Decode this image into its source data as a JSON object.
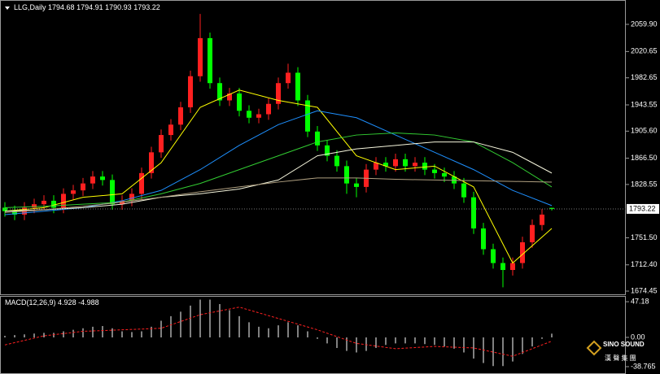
{
  "chart_data": {
    "type": "candlestick",
    "title": "LLG,Daily",
    "up_color": "#ff2020",
    "down_color": "#00ff00",
    "open": [
      1795,
      1790,
      1785,
      1795,
      1800,
      1805,
      1795,
      1815,
      1820,
      1830,
      1840,
      1835,
      1800,
      1805,
      1815,
      1845,
      1875,
      1900,
      1915,
      1940,
      1985,
      2040,
      1975,
      1950,
      1960,
      1935,
      1925,
      1930,
      1945,
      1975,
      1990,
      1950,
      1905,
      1885,
      1870,
      1855,
      1830,
      1825,
      1850,
      1860,
      1855,
      1865,
      1855,
      1860,
      1850,
      1845,
      1840,
      1830,
      1810,
      1765,
      1735,
      1715,
      1705,
      1715,
      1745,
      1770,
      1794.68
    ],
    "high": [
      1803,
      1798,
      1803,
      1808,
      1813,
      1813,
      1823,
      1828,
      1838,
      1848,
      1848,
      1843,
      1813,
      1823,
      1853,
      1883,
      1908,
      1923,
      1948,
      1993,
      2075,
      2048,
      1983,
      1968,
      1968,
      1943,
      1938,
      1953,
      1983,
      2003,
      1998,
      1958,
      1913,
      1893,
      1878,
      1863,
      1838,
      1858,
      1868,
      1868,
      1873,
      1873,
      1868,
      1868,
      1858,
      1853,
      1848,
      1838,
      1818,
      1773,
      1743,
      1723,
      1723,
      1753,
      1778,
      1793,
      1794.91
    ],
    "low": [
      1782,
      1777,
      1777,
      1787,
      1792,
      1787,
      1787,
      1807,
      1812,
      1822,
      1827,
      1792,
      1792,
      1797,
      1807,
      1837,
      1867,
      1892,
      1907,
      1932,
      1977,
      1967,
      1942,
      1942,
      1927,
      1917,
      1917,
      1922,
      1937,
      1967,
      1942,
      1897,
      1877,
      1862,
      1847,
      1815,
      1810,
      1817,
      1842,
      1847,
      1847,
      1847,
      1847,
      1842,
      1837,
      1832,
      1822,
      1802,
      1757,
      1727,
      1707,
      1680,
      1697,
      1707,
      1737,
      1762,
      1790.93
    ],
    "close": [
      1790,
      1785,
      1795,
      1800,
      1805,
      1795,
      1815,
      1820,
      1830,
      1840,
      1835,
      1800,
      1805,
      1815,
      1845,
      1875,
      1900,
      1915,
      1940,
      1985,
      2040,
      1975,
      1950,
      1960,
      1935,
      1925,
      1930,
      1945,
      1975,
      1990,
      1950,
      1905,
      1885,
      1870,
      1855,
      1830,
      1825,
      1850,
      1860,
      1855,
      1865,
      1855,
      1860,
      1850,
      1845,
      1840,
      1830,
      1810,
      1765,
      1735,
      1715,
      1705,
      1715,
      1745,
      1770,
      1785,
      1793.22
    ],
    "current_price": 1793.22,
    "ylim": [
      1669.8,
      2095.1
    ],
    "yticks": [
      {
        "value": 2059.9,
        "label": "2059.90"
      },
      2020.65,
      1982.65,
      1943.55,
      {
        "value": 1905.6,
        "label": "1905.60"
      },
      {
        "value": 1866.5,
        "label": "1866.50"
      },
      1828.55,
      {
        "value": 1751.5,
        "label": "1751.50"
      },
      {
        "value": 1712.4,
        "label": "1712.40"
      },
      1674.45
    ],
    "ma_x": [
      0,
      4,
      8,
      12,
      16,
      20,
      24,
      28,
      32,
      36,
      40,
      44,
      48,
      52,
      56
    ],
    "moving_averages": [
      {
        "color": "#ffff00",
        "values": [
          1790,
          1795,
          1810,
          1815,
          1860,
          1940,
          1965,
          1950,
          1940,
          1870,
          1850,
          1855,
          1825,
          1715,
          1765
        ]
      },
      {
        "color": "#1e90ff",
        "values": [
          1785,
          1790,
          1795,
          1805,
          1820,
          1850,
          1885,
          1915,
          1935,
          1925,
          1900,
          1875,
          1850,
          1820,
          1798
        ]
      },
      {
        "color": "#32cd32",
        "values": [
          1795,
          1797,
          1800,
          1803,
          1815,
          1830,
          1850,
          1870,
          1890,
          1900,
          1903,
          1900,
          1890,
          1860,
          1825
        ]
      },
      {
        "color": "#f5f5dc",
        "values": [
          1790,
          1792,
          1795,
          1800,
          1810,
          1815,
          1822,
          1835,
          1870,
          1880,
          1885,
          1890,
          1890,
          1875,
          1845
        ]
      },
      {
        "color": "#b0a080",
        "values": [
          1788,
          1792,
          1797,
          1803,
          1810,
          1818,
          1825,
          1832,
          1838,
          1838,
          1836,
          1835,
          1834,
          1833,
          1832
        ]
      }
    ],
    "macd": {
      "label": "MACD(12,26,9)",
      "hist_color": "#ffffff",
      "signal_color": "#ff2020",
      "values": [
        2,
        3,
        4,
        5,
        6,
        6,
        8,
        10,
        12,
        14,
        15,
        12,
        8,
        7,
        8,
        14,
        22,
        28,
        34,
        42,
        50,
        50,
        44,
        36,
        28,
        20,
        14,
        12,
        16,
        20,
        16,
        8,
        -2,
        -8,
        -14,
        -18,
        -20,
        -18,
        -14,
        -10,
        -8,
        -8,
        -8,
        -9,
        -10,
        -12,
        -15,
        -20,
        -28,
        -34,
        -38,
        -38,
        -32,
        -22,
        -12,
        -2,
        4.928
      ],
      "signal": [
        -10,
        2,
        8,
        10,
        12,
        30,
        40,
        25,
        10,
        -8,
        -15,
        -12,
        -14,
        -25,
        -4.988
      ],
      "ylim": [
        -47.4,
        54.8
      ],
      "yticks": [
        47.18,
        {
          "value": 0,
          "label": "0.00"
        },
        -38.765
      ]
    },
    "logo": {
      "name": "SINO SOUND",
      "subtitle": "漢 聲 集 團"
    }
  }
}
